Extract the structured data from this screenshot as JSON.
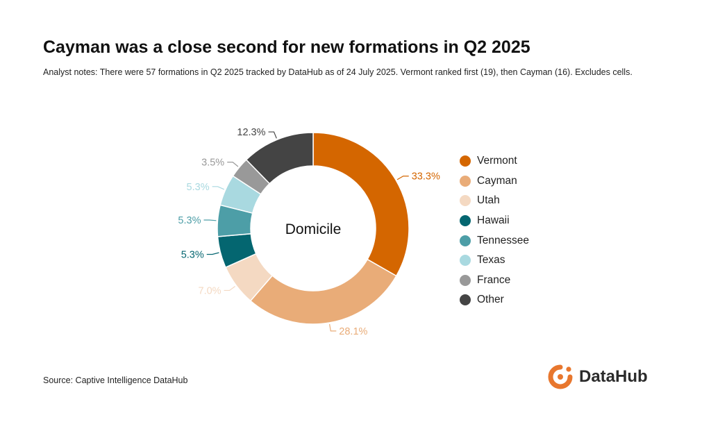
{
  "header": {
    "title": "Cayman was a close second for new formations in Q2 2025",
    "subtitle": "Analyst notes: There were 57 formations in Q2 2025 tracked by DataHub as of 24 July 2025. Vermont ranked first (19), then Cayman (16). Excludes cells."
  },
  "chart_data": {
    "type": "pie",
    "center_label": "Domicile",
    "slices": [
      {
        "name": "Vermont",
        "value": 33.3,
        "label": "33.3%",
        "color": "#d46600"
      },
      {
        "name": "Cayman",
        "value": 28.1,
        "label": "28.1%",
        "color": "#e9ac78"
      },
      {
        "name": "Utah",
        "value": 7.0,
        "label": "7.0%",
        "color": "#f4d9c2"
      },
      {
        "name": "Hawaii",
        "value": 5.3,
        "label": "5.3%",
        "color": "#046670"
      },
      {
        "name": "Tennessee",
        "value": 5.3,
        "label": "5.3%",
        "color": "#4d9ea7"
      },
      {
        "name": "Texas",
        "value": 5.3,
        "label": "5.3%",
        "color": "#a9d9e0"
      },
      {
        "name": "France",
        "value": 3.5,
        "label": "3.5%",
        "color": "#999999"
      },
      {
        "name": "Other",
        "value": 12.3,
        "label": "12.3%",
        "color": "#444444"
      }
    ],
    "legend_position": "right"
  },
  "footer": {
    "source": "Source: Captive Intelligence DataHub",
    "brand": "DataHub",
    "brand_color": "#e8772e",
    "logo_icon": "datahub-logo-icon"
  }
}
